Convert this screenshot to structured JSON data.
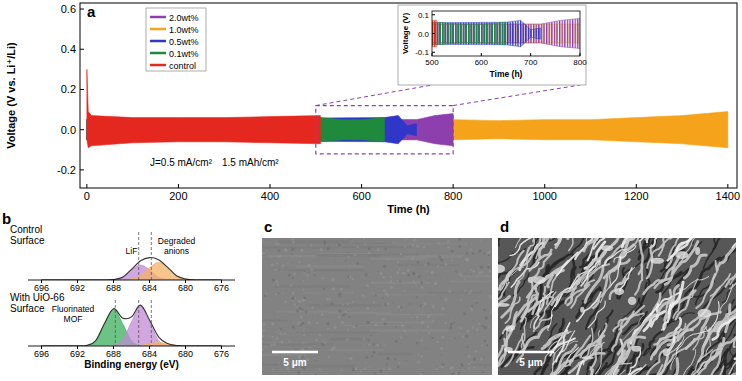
{
  "chart_data": [
    {
      "type": "area",
      "label": "a",
      "xlabel": "Time (h)",
      "ylabel": "Voltage (V vs. Li⁺/Li)",
      "xlim": [
        -15,
        1420
      ],
      "ylim": [
        -0.29,
        0.63
      ],
      "xticks": [
        0,
        200,
        400,
        600,
        800,
        1000,
        1200,
        1400
      ],
      "yticks": [
        {
          "value": -0.2,
          "label": "-0.2"
        },
        {
          "value": 0,
          "label": "0.0"
        },
        {
          "value": 0.2,
          "label": "0.2"
        },
        {
          "value": 0.4,
          "label": "0.4"
        },
        {
          "value": 0.6,
          "label": "0.6"
        }
      ],
      "grid": false,
      "legend": "upper left",
      "annotations": [
        "J=0.5 mA/cm²",
        "1.5 mAh/cm²"
      ],
      "series": [
        {
          "name": "2.0wt%",
          "color": "#8e3fae",
          "x": [
            0,
            720,
            760,
            800
          ],
          "upper": [
            0.05,
            0.05,
            0.07,
            0.08
          ],
          "lower": [
            -0.05,
            -0.05,
            -0.07,
            -0.08
          ]
        },
        {
          "name": "1.0wt%",
          "color": "#f5a31a",
          "x": [
            0,
            800,
            900,
            1000,
            1100,
            1200,
            1300,
            1400
          ],
          "upper": [
            0.05,
            0.05,
            0.045,
            0.05,
            0.05,
            0.06,
            0.07,
            0.09
          ],
          "lower": [
            -0.05,
            -0.05,
            -0.045,
            -0.05,
            -0.05,
            -0.06,
            -0.07,
            -0.09
          ]
        },
        {
          "name": "0.5wt%",
          "color": "#2f36c8",
          "x": [
            0,
            650,
            680,
            700,
            720
          ],
          "upper": [
            0.05,
            0.06,
            0.07,
            0.02,
            0.03
          ],
          "lower": [
            -0.05,
            -0.06,
            -0.07,
            -0.02,
            -0.03
          ]
        },
        {
          "name": "0.1wt%",
          "color": "#1f8a3c",
          "x": [
            0,
            510,
            560,
            600,
            650
          ],
          "upper": [
            0.05,
            0.06,
            0.05,
            0.05,
            0.06
          ],
          "lower": [
            -0.05,
            -0.06,
            -0.05,
            -0.05,
            -0.06
          ]
        },
        {
          "name": "control",
          "color": "#e5281f",
          "x": [
            0,
            3,
            10,
            100,
            200,
            300,
            400,
            510
          ],
          "upper": [
            0.3,
            0.09,
            0.07,
            0.06,
            0.06,
            0.06,
            0.065,
            0.07
          ],
          "lower": [
            -0.05,
            -0.09,
            -0.08,
            -0.065,
            -0.06,
            -0.06,
            -0.065,
            -0.07
          ]
        }
      ],
      "inset": {
        "xlim": [
          500,
          800
        ],
        "ylim": [
          -0.12,
          0.12
        ],
        "xticks": [
          500,
          600,
          700,
          800
        ],
        "yticks": [
          {
            "value": -0.1,
            "label": "-0.1"
          },
          {
            "value": 0,
            "label": "0.0"
          },
          {
            "value": 0.1,
            "label": "0.1"
          }
        ],
        "xlabel": "Time (h)",
        "ylabel": "Voltage (V)"
      }
    },
    {
      "type": "line",
      "label": "b",
      "title": "Control Surface",
      "xlim": [
        697.5,
        674.5
      ],
      "ylim": [
        0,
        0.9
      ],
      "xticks": [
        696,
        692,
        688,
        684,
        680,
        676
      ],
      "tick_labels": "x",
      "x": [
        696,
        695,
        694,
        693,
        692,
        691,
        690,
        689,
        688,
        687,
        686,
        685,
        684,
        683,
        682,
        681,
        680,
        679,
        678,
        677,
        676
      ],
      "series": [
        {
          "type": "area",
          "color": "#c08ad4",
          "values": [
            0,
            0,
            0,
            0,
            0,
            0,
            0,
            0,
            0.01,
            0.05,
            0.19,
            0.28,
            0.19,
            0.05,
            0.01,
            0,
            0,
            0,
            0,
            0,
            0
          ]
        },
        {
          "type": "area",
          "color": "#f5b167",
          "values": [
            0,
            0,
            0,
            0,
            0,
            0,
            0,
            0,
            0,
            0,
            0.02,
            0.08,
            0.23,
            0.33,
            0.23,
            0.08,
            0.02,
            0,
            0,
            0,
            0
          ]
        },
        {
          "type": "line",
          "color": "#333333",
          "values": [
            0,
            0,
            0,
            0,
            0,
            0,
            0,
            0,
            0.01,
            0.05,
            0.2,
            0.36,
            0.42,
            0.38,
            0.24,
            0.08,
            0.02,
            0,
            0,
            0,
            0
          ]
        }
      ],
      "annotations": [
        {
          "text": "LiF",
          "x": 686
        },
        {
          "text": "Degraded anions",
          "x": 681
        }
      ],
      "reference_lines": [
        685.2,
        683.8
      ]
    },
    {
      "type": "line",
      "title": "With UiO-66 Surface",
      "xlabel": "Binding energy (eV)",
      "xlim": [
        697.5,
        674.5
      ],
      "ylim": [
        0,
        0.9
      ],
      "xticks": [
        696,
        692,
        688,
        684,
        680,
        676
      ],
      "tick_labels": "x",
      "x": [
        696,
        695,
        694,
        693,
        692,
        691,
        690,
        689,
        688,
        687,
        686,
        685,
        684,
        683,
        682,
        681,
        680,
        679,
        678,
        677,
        676
      ],
      "series": [
        {
          "type": "area",
          "color": "#3caf5c",
          "values": [
            0,
            0,
            0,
            0,
            0,
            0.01,
            0.1,
            0.44,
            0.72,
            0.44,
            0.1,
            0.01,
            0,
            0,
            0,
            0,
            0,
            0,
            0,
            0,
            0
          ]
        },
        {
          "type": "area",
          "color": "#c08ad4",
          "values": [
            0,
            0,
            0,
            0,
            0,
            0,
            0,
            0,
            0.01,
            0.11,
            0.47,
            0.78,
            0.47,
            0.11,
            0.01,
            0,
            0,
            0,
            0,
            0,
            0
          ]
        },
        {
          "type": "area",
          "color": "#f5b167",
          "values": [
            0,
            0,
            0,
            0,
            0,
            0,
            0,
            0,
            0,
            0,
            0,
            0.01,
            0.04,
            0.07,
            0.04,
            0.01,
            0,
            0,
            0,
            0,
            0
          ]
        },
        {
          "type": "line",
          "color": "#333333",
          "values": [
            0,
            0,
            0,
            0,
            0,
            0.01,
            0.1,
            0.44,
            0.73,
            0.55,
            0.57,
            0.8,
            0.51,
            0.18,
            0.05,
            0.01,
            0,
            0,
            0,
            0,
            0
          ]
        }
      ],
      "annotations": [
        {
          "text": "Fluorinated MOF",
          "x": 692.5
        }
      ],
      "reference_lines": [
        687.8,
        685.2,
        683.8
      ]
    }
  ],
  "images": [
    {
      "label": "c",
      "scale_bar": "5 μm"
    },
    {
      "label": "d",
      "scale_bar": "5 μm"
    }
  ]
}
